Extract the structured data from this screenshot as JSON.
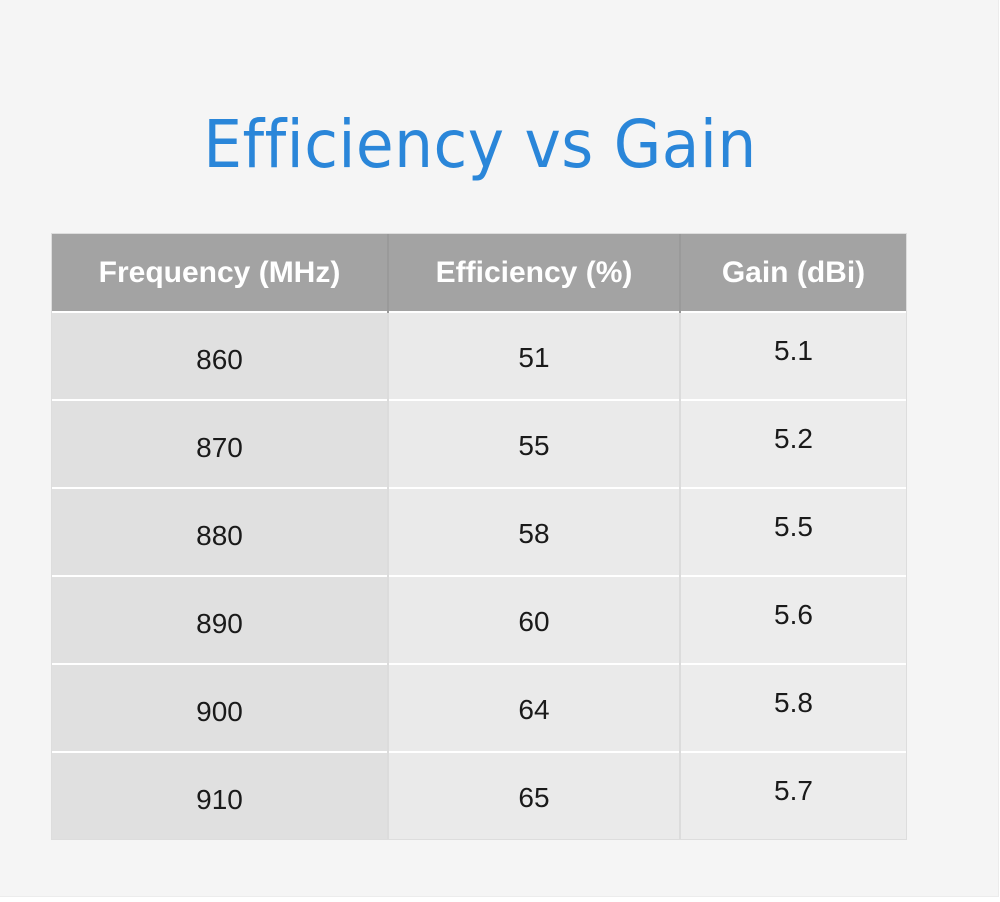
{
  "title": "Efficiency vs Gain",
  "chart_data": {
    "type": "table",
    "title": "Efficiency vs Gain",
    "columns": [
      "Frequency (MHz)",
      "Efficiency (%)",
      "Gain (dBi)"
    ],
    "rows": [
      [
        "860",
        "51",
        "5.1"
      ],
      [
        "870",
        "55",
        "5.2"
      ],
      [
        "880",
        "58",
        "5.5"
      ],
      [
        "890",
        "60",
        "5.6"
      ],
      [
        "900",
        "64",
        "5.8"
      ],
      [
        "910",
        "65",
        "5.7"
      ]
    ]
  }
}
